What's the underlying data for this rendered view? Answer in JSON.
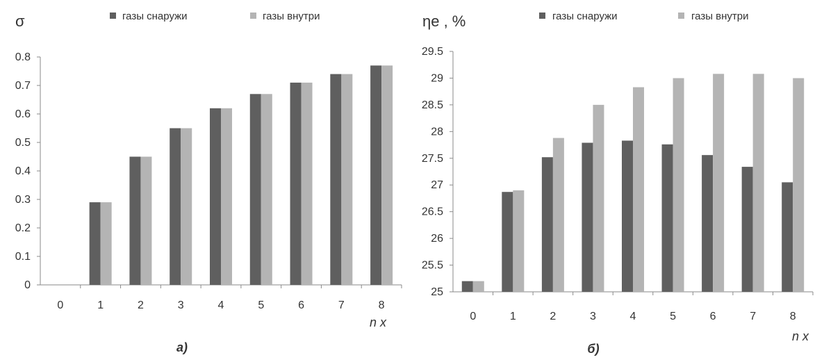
{
  "chart_data": [
    {
      "type": "bar",
      "panel_label": "а)",
      "ylabel": "σ",
      "xlabel": "n x",
      "categories": [
        "0",
        "1",
        "2",
        "3",
        "4",
        "5",
        "6",
        "7",
        "8"
      ],
      "ylim": [
        0,
        0.8
      ],
      "yticks": [
        "0",
        "0.1",
        "0.2",
        "0.3",
        "0.4",
        "0.5",
        "0.6",
        "0.7",
        "0.8"
      ],
      "grid": false,
      "legend_position": "top",
      "series": [
        {
          "name": "газы снаружи",
          "color": "#5f5f5f",
          "values": [
            0,
            0.29,
            0.45,
            0.55,
            0.62,
            0.67,
            0.71,
            0.74,
            0.77
          ]
        },
        {
          "name": "газы внутри",
          "color": "#b4b4b4",
          "values": [
            0,
            0.29,
            0.45,
            0.55,
            0.62,
            0.67,
            0.71,
            0.74,
            0.77
          ]
        }
      ]
    },
    {
      "type": "bar",
      "panel_label": "б)",
      "ylabel": "ηe , %",
      "xlabel": "n x",
      "categories": [
        "0",
        "1",
        "2",
        "3",
        "4",
        "5",
        "6",
        "7",
        "8"
      ],
      "ylim": [
        25,
        29.5
      ],
      "yticks": [
        "25",
        "25.5",
        "26",
        "26.5",
        "27",
        "27.5",
        "28",
        "28.5",
        "29",
        "29.5"
      ],
      "grid": false,
      "legend_position": "top",
      "series": [
        {
          "name": "газы снаружи",
          "color": "#5f5f5f",
          "values": [
            25.2,
            26.87,
            27.52,
            27.79,
            27.83,
            27.76,
            27.56,
            27.34,
            27.05
          ]
        },
        {
          "name": "газы внутри",
          "color": "#b4b4b4",
          "values": [
            25.2,
            26.9,
            27.88,
            28.5,
            28.83,
            29.0,
            29.08,
            29.08,
            29.0
          ]
        }
      ]
    }
  ]
}
